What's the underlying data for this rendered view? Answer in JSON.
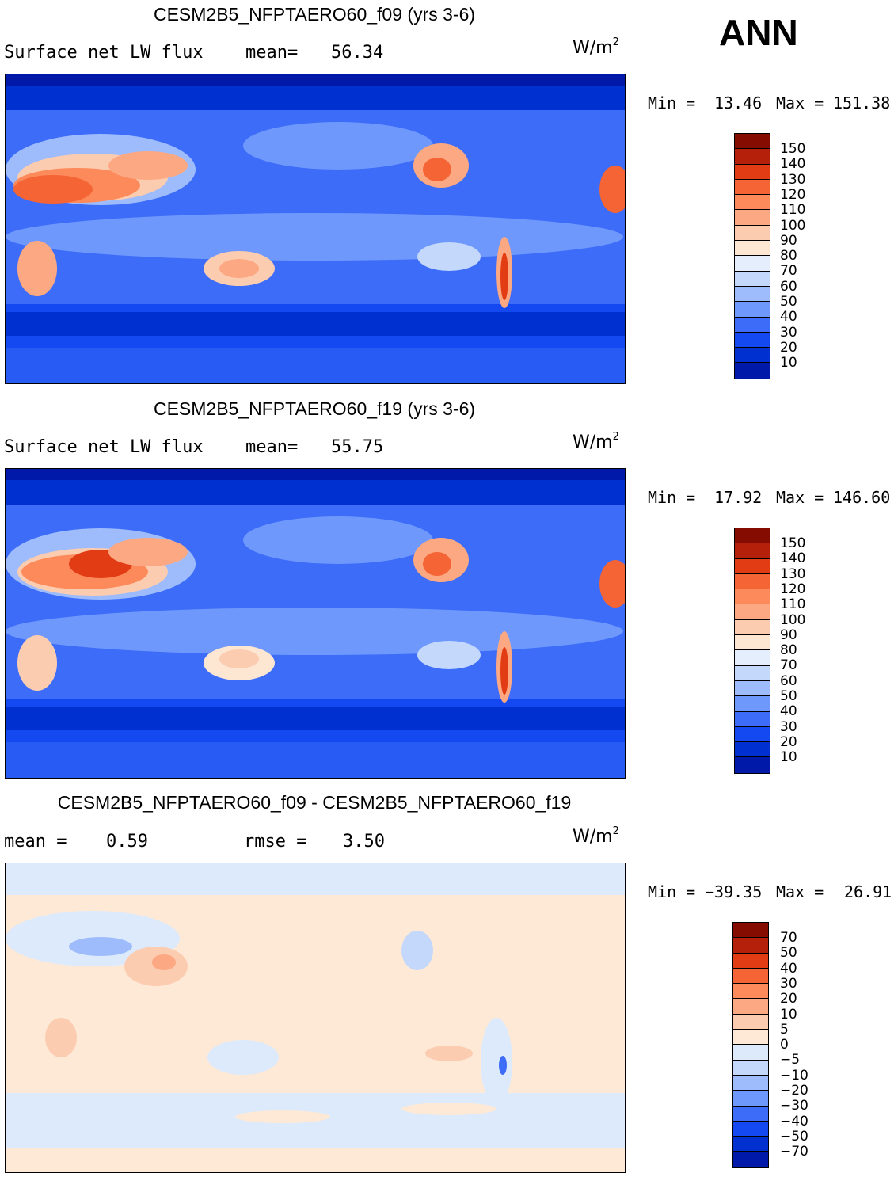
{
  "season": "ANN",
  "colors": {
    "abs_scale": [
      "#000080",
      "#0019a8",
      "#0030d0",
      "#1448f0",
      "#3c6cf8",
      "#6e98fc",
      "#9ebcfc",
      "#c4d8fc",
      "#e4eefc",
      "#fde6d2",
      "#fcccb0",
      "#fca882",
      "#fc8a5a",
      "#f46434",
      "#e23c14",
      "#b4200a",
      "#840c00"
    ],
    "diff_scale": [
      "#000080",
      "#0019a8",
      "#0030d0",
      "#1448f0",
      "#3c6cf8",
      "#6e98fc",
      "#9ebcfc",
      "#c4d8fc",
      "#dceafc",
      "#fde9d6",
      "#fcccb0",
      "#fca882",
      "#fc8a5a",
      "#f46434",
      "#e23c14",
      "#b4200a",
      "#840c00"
    ]
  },
  "chart_data": [
    {
      "type": "heatmap",
      "title": "CESM2B5_NFPTAERO60_f09 (yrs 3-6)",
      "variable": "Surface net LW flux",
      "mean_label": "mean=",
      "mean": "56.34",
      "units": "W/m",
      "units_exp": "2",
      "min_label": "Min =",
      "min": "13.46",
      "max_label": "Max =",
      "max": "151.38",
      "levels": [
        "150",
        "140",
        "130",
        "120",
        "110",
        "100",
        "90",
        "80",
        "70",
        "60",
        "50",
        "40",
        "30",
        "20",
        "10"
      ]
    },
    {
      "type": "heatmap",
      "title": "CESM2B5_NFPTAERO60_f19 (yrs 3-6)",
      "variable": "Surface net LW flux",
      "mean_label": "mean=",
      "mean": "55.75",
      "units": "W/m",
      "units_exp": "2",
      "min_label": "Min =",
      "min": "17.92",
      "max_label": "Max =",
      "max": "146.60",
      "levels": [
        "150",
        "140",
        "130",
        "120",
        "110",
        "100",
        "90",
        "80",
        "70",
        "60",
        "50",
        "40",
        "30",
        "20",
        "10"
      ]
    },
    {
      "type": "heatmap",
      "title": "CESM2B5_NFPTAERO60_f09 - CESM2B5_NFPTAERO60_f19",
      "mean_label": "mean =",
      "mean": "0.59",
      "rmse_label": "rmse =",
      "rmse": "3.50",
      "units": "W/m",
      "units_exp": "2",
      "min_label": "Min =",
      "min": "−39.35",
      "max_label": "Max =",
      "max": "26.91",
      "levels": [
        "70",
        "50",
        "40",
        "30",
        "20",
        "10",
        "5",
        "0",
        "−5",
        "−10",
        "−20",
        "−30",
        "−40",
        "−50",
        "−70"
      ]
    }
  ]
}
